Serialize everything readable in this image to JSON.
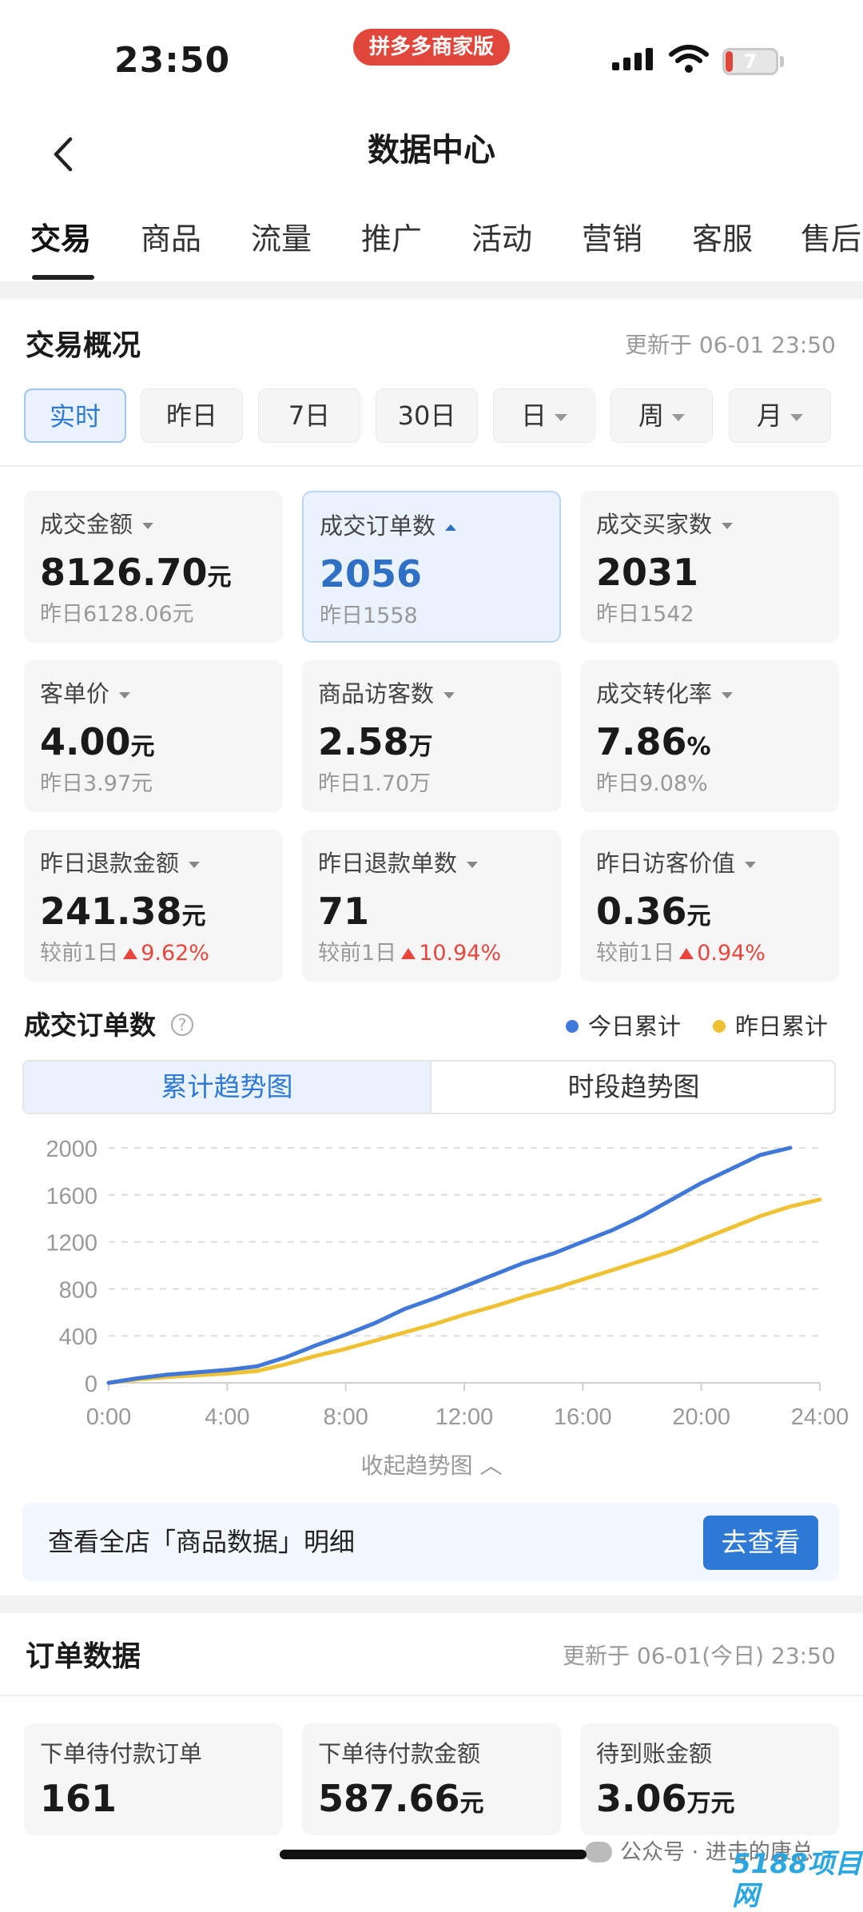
{
  "status_bar": {
    "time": "23:50",
    "app_badge": "拼多多商家版",
    "battery": "7"
  },
  "nav": {
    "title": "数据中心"
  },
  "tabs": [
    "交易",
    "商品",
    "流量",
    "推广",
    "活动",
    "营销",
    "客服",
    "售后"
  ],
  "overview": {
    "title": "交易概况",
    "updated": "更新于 06-01 23:50",
    "ranges": [
      "实时",
      "昨日",
      "7日",
      "30日",
      "日",
      "周",
      "月"
    ],
    "metrics": [
      {
        "label": "成交金额",
        "value": "8126.70",
        "unit": "元",
        "sub": "昨日6128.06元"
      },
      {
        "label": "成交订单数",
        "value": "2056",
        "unit": "",
        "sub": "昨日1558"
      },
      {
        "label": "成交买家数",
        "value": "2031",
        "unit": "",
        "sub": "昨日1542"
      },
      {
        "label": "客单价",
        "value": "4.00",
        "unit": "元",
        "sub": "昨日3.97元"
      },
      {
        "label": "商品访客数",
        "value": "2.58",
        "unit": "万",
        "sub": "昨日1.70万"
      },
      {
        "label": "成交转化率",
        "value": "7.86",
        "unit": "%",
        "sub": "昨日9.08%"
      },
      {
        "label": "昨日退款金额",
        "value": "241.38",
        "unit": "元",
        "sub_prefix": "较前1日",
        "sub_change": "9.62%"
      },
      {
        "label": "昨日退款单数",
        "value": "71",
        "unit": "",
        "sub_prefix": "较前1日",
        "sub_change": "10.94%"
      },
      {
        "label": "昨日访客价值",
        "value": "0.36",
        "unit": "元",
        "sub_prefix": "较前1日",
        "sub_change": "0.94%"
      }
    ]
  },
  "trend": {
    "title": "成交订单数",
    "help": "?",
    "legend_today": "今日累计",
    "legend_yesterday": "昨日累计",
    "seg_cumulative": "累计趋势图",
    "seg_hourly": "时段趋势图",
    "collapse": "收起趋势图",
    "colors": {
      "today": "#3f78d8",
      "yesterday": "#efc233"
    }
  },
  "chart_data": {
    "type": "line",
    "x_ticks": [
      "0:00",
      "4:00",
      "8:00",
      "12:00",
      "16:00",
      "20:00",
      "24:00"
    ],
    "y_ticks": [
      0,
      400,
      800,
      1200,
      1600,
      2000
    ],
    "xlim": [
      0,
      24
    ],
    "ylim": [
      0,
      2000
    ],
    "grid": true,
    "series": [
      {
        "name": "今日累计",
        "color": "#3f78d8",
        "x": [
          0,
          1,
          2,
          3,
          4,
          5,
          6,
          7,
          8,
          9,
          10,
          11,
          12,
          13,
          14,
          15,
          16,
          17,
          18,
          19,
          20,
          21,
          22,
          23
        ],
        "y": [
          0,
          40,
          70,
          90,
          110,
          140,
          220,
          320,
          410,
          510,
          630,
          720,
          820,
          920,
          1020,
          1100,
          1200,
          1300,
          1420,
          1560,
          1700,
          1820,
          1940,
          2000
        ]
      },
      {
        "name": "昨日累计",
        "color": "#efc233",
        "x": [
          0,
          1,
          2,
          3,
          4,
          5,
          6,
          7,
          8,
          9,
          10,
          11,
          12,
          13,
          14,
          15,
          16,
          17,
          18,
          19,
          20,
          21,
          22,
          23,
          24
        ],
        "y": [
          0,
          30,
          50,
          65,
          80,
          100,
          160,
          230,
          290,
          360,
          430,
          500,
          580,
          650,
          730,
          800,
          880,
          960,
          1040,
          1120,
          1220,
          1320,
          1420,
          1500,
          1560
        ]
      }
    ]
  },
  "banner": {
    "text": "查看全店「商品数据」明细",
    "button": "去查看"
  },
  "orders": {
    "title": "订单数据",
    "updated": "更新于 06-01(今日) 23:50",
    "metrics": [
      {
        "label": "下单待付款订单",
        "value": "161",
        "unit": ""
      },
      {
        "label": "下单待付款金额",
        "value": "587.66",
        "unit": "元"
      },
      {
        "label": "待到账金额",
        "value": "3.06",
        "unit": "万元"
      }
    ]
  },
  "watermark": "公众号 · 进击的康总",
  "site_mark": "5188项目网"
}
